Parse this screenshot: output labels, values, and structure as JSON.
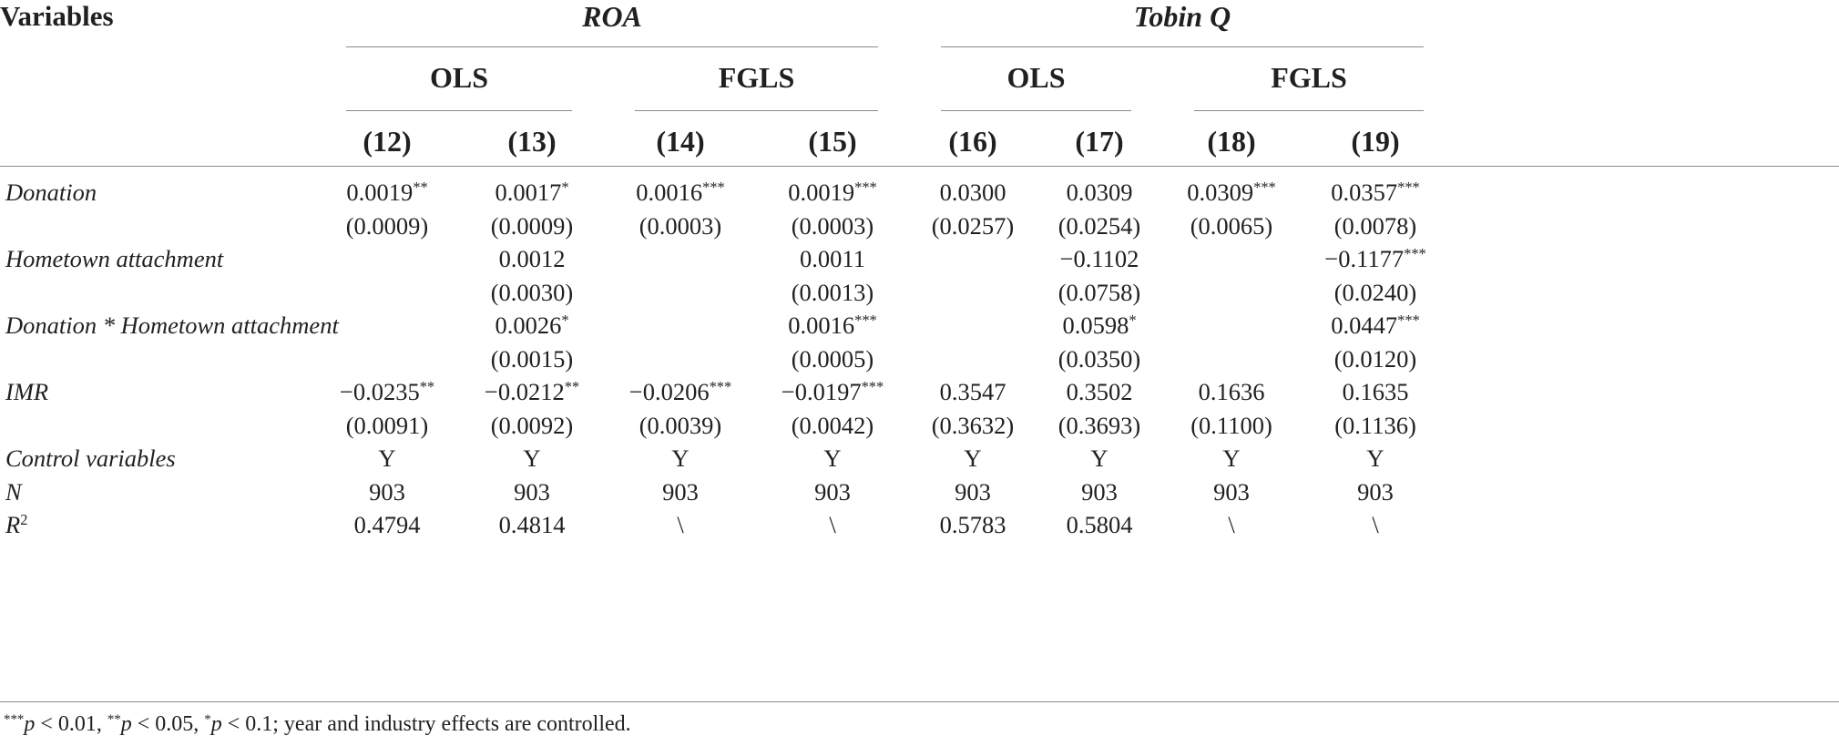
{
  "header": {
    "variables_label": "Variables",
    "groups": [
      {
        "label": "ROA",
        "methods": [
          "OLS",
          "FGLS"
        ]
      },
      {
        "label": "Tobin Q",
        "methods": [
          "OLS",
          "FGLS"
        ]
      }
    ],
    "columns": [
      "(12)",
      "(13)",
      "(14)",
      "(15)",
      "(16)",
      "(17)",
      "(18)",
      "(19)"
    ]
  },
  "rows": [
    {
      "label": "Donation",
      "cells": [
        "0.0019**",
        "0.0017*",
        "0.0016***",
        "0.0019***",
        "0.0300",
        "0.0309",
        "0.0309***",
        "0.0357***"
      ]
    },
    {
      "label": "",
      "cells": [
        "(0.0009)",
        "(0.0009)",
        "(0.0003)",
        "(0.0003)",
        "(0.0257)",
        "(0.0254)",
        "(0.0065)",
        "(0.0078)"
      ]
    },
    {
      "label": "Hometown attachment",
      "cells": [
        "",
        "0.0012",
        "",
        "0.0011",
        "",
        "−0.1102",
        "",
        "−0.1177***"
      ]
    },
    {
      "label": "",
      "cells": [
        "",
        "(0.0030)",
        "",
        "(0.0013)",
        "",
        "(0.0758)",
        "",
        "(0.0240)"
      ]
    },
    {
      "label": "Donation * Hometown attachment",
      "cells": [
        "",
        "0.0026*",
        "",
        "0.0016***",
        "",
        "0.0598*",
        "",
        "0.0447***"
      ]
    },
    {
      "label": "",
      "cells": [
        "",
        "(0.0015)",
        "",
        "(0.0005)",
        "",
        "(0.0350)",
        "",
        "(0.0120)"
      ]
    },
    {
      "label": "IMR",
      "cells": [
        "−0.0235**",
        "−0.0212**",
        "−0.0206***",
        "−0.0197***",
        "0.3547",
        "0.3502",
        "0.1636",
        "0.1635"
      ]
    },
    {
      "label": "",
      "cells": [
        "(0.0091)",
        "(0.0092)",
        "(0.0039)",
        "(0.0042)",
        "(0.3632)",
        "(0.3693)",
        "(0.1100)",
        "(0.1136)"
      ]
    },
    {
      "label": "Control variables",
      "cells": [
        "Y",
        "Y",
        "Y",
        "Y",
        "Y",
        "Y",
        "Y",
        "Y"
      ]
    },
    {
      "label": "N",
      "cells": [
        "903",
        "903",
        "903",
        "903",
        "903",
        "903",
        "903",
        "903"
      ]
    },
    {
      "label": "R2",
      "cells": [
        "0.4794",
        "0.4814",
        "\\",
        "\\",
        "0.5783",
        "0.5804",
        "\\",
        "\\"
      ]
    }
  ],
  "footnote": {
    "p1": "p",
    "t1": " < 0.01, ",
    "p2": "p",
    "t2": " < 0.05, ",
    "p3": "p",
    "t3": " < 0.1; year and industry effects are controlled."
  }
}
